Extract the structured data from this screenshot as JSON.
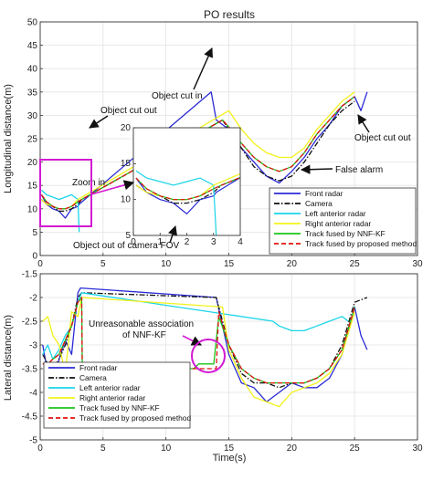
{
  "chart_data": [
    {
      "type": "line",
      "title": "PO results",
      "xlabel": "",
      "ylabel": "Longitudinal distance(m)",
      "xlim": [
        0,
        30
      ],
      "ylim": [
        0,
        50
      ],
      "xticks": [
        0,
        5,
        10,
        15,
        20,
        25,
        30
      ],
      "yticks": [
        0,
        5,
        10,
        15,
        20,
        25,
        30,
        35,
        40,
        45,
        50
      ],
      "grid": true,
      "legend_position": "bottom-right",
      "series": [
        {
          "name": "Front radar",
          "color": "#2b2bd6",
          "x": [
            0.1,
            0.5,
            1.0,
            1.5,
            2.0,
            2.5,
            3.0,
            3.1,
            13.6,
            14.0,
            14.5,
            15.0,
            16.0,
            17.0,
            18.0,
            19.0,
            20.0,
            21.0,
            22.0,
            23.0,
            24.0,
            25.0,
            25.5,
            26.0
          ],
          "y": [
            13,
            11,
            10,
            9.5,
            8,
            10,
            10.5,
            11,
            35,
            29,
            28,
            27,
            23,
            20,
            17,
            15.5,
            18,
            21,
            25,
            28,
            32,
            34,
            31,
            35
          ]
        },
        {
          "name": "Camera",
          "color": "#111111",
          "x": [
            0.1,
            0.5,
            1.0,
            1.5,
            2.0,
            2.5,
            3.0,
            3.3,
            14.5,
            15.0,
            16.0,
            17.0,
            18.0,
            19.0,
            20.0,
            21.0,
            22.0,
            23.0,
            24.0,
            25.0
          ],
          "y": [
            12,
            11,
            10.5,
            9.5,
            9.5,
            10,
            11,
            12,
            29,
            27,
            23,
            19,
            17,
            16,
            17,
            20,
            24,
            28,
            31,
            33
          ]
        },
        {
          "name": "Left anterior radar",
          "color": "#19d4e8",
          "x": [
            0.1,
            0.5,
            1.0,
            1.5,
            2.0,
            2.5,
            3.0,
            3.1
          ],
          "y": [
            14,
            13,
            12.5,
            12,
            12.5,
            13,
            12,
            5
          ]
        },
        {
          "name": "Right anterior radar",
          "color": "#f2f21a",
          "x": [
            0.1,
            0.5,
            1.0,
            1.5,
            2.0,
            2.5,
            3.0,
            15.0,
            16.0,
            17.0,
            18.0,
            19.0,
            20.0,
            21.0,
            22.0,
            23.0,
            24.0,
            25.0
          ],
          "y": [
            12,
            11,
            10.5,
            10,
            10,
            10.5,
            12,
            31,
            27,
            24,
            22,
            21,
            21,
            23,
            27,
            30,
            33,
            35
          ]
        },
        {
          "name": "Track fused by NNF-KF",
          "color": "#19c419",
          "x": [
            0.1,
            0.5,
            1.0,
            1.5,
            2.0,
            2.5,
            3.0,
            3.3,
            14.5,
            15.0,
            16.0,
            17.0,
            18.0,
            19.0,
            20.0,
            21.0,
            22.0,
            23.0,
            24.0,
            25.0
          ],
          "y": [
            13,
            11.5,
            10.5,
            10,
            10,
            10.5,
            11.5,
            12,
            29,
            27.5,
            24,
            21,
            19,
            18,
            19,
            22,
            26,
            29,
            32,
            34
          ]
        },
        {
          "name": "Track fused by proposed method",
          "color": "#e01010",
          "x": [
            0.1,
            0.5,
            1.0,
            1.5,
            2.0,
            2.5,
            3.0,
            3.3,
            14.5,
            15.0,
            16.0,
            17.0,
            18.0,
            19.0,
            20.0,
            21.0,
            22.0,
            23.0,
            24.0,
            25.0
          ],
          "y": [
            13,
            11.5,
            10.5,
            10,
            10,
            10.5,
            11.5,
            12,
            29,
            27.5,
            24,
            21,
            19,
            18,
            19,
            22,
            26,
            29,
            32,
            34
          ]
        }
      ],
      "inset": {
        "xlim": [
          0,
          4
        ],
        "ylim": [
          5,
          20
        ],
        "xticks": [
          0,
          1,
          2,
          3,
          4
        ],
        "yticks": [
          5,
          10,
          15,
          20
        ]
      },
      "annotations": [
        "PO results",
        "Object cut in",
        "Object cut out",
        "Object cut out",
        "Zoom in",
        "Object out of camera FOV",
        "False alarm"
      ]
    },
    {
      "type": "line",
      "title": "",
      "xlabel": "Time(s)",
      "ylabel": "Lateral distance(m)",
      "xlim": [
        0,
        30
      ],
      "ylim": [
        -5,
        -1.5
      ],
      "xticks": [
        0,
        5,
        10,
        15,
        20,
        25,
        30
      ],
      "yticks": [
        -5,
        -4.5,
        -4,
        -3.5,
        -3,
        -2.5,
        -2,
        -1.5
      ],
      "grid": true,
      "legend_position": "bottom-left",
      "series": [
        {
          "name": "Front radar",
          "color": "#2b2bd6",
          "x": [
            0.2,
            0.6,
            1.0,
            1.5,
            2.0,
            2.5,
            3.0,
            3.2,
            14.0,
            15.0,
            16.0,
            17.0,
            18.0,
            19.0,
            20.0,
            21.0,
            22.0,
            23.0,
            24.0,
            25.0,
            25.5,
            26.0
          ],
          "y": [
            -3.0,
            -3.6,
            -3.9,
            -3.3,
            -2.9,
            -3.2,
            -1.9,
            -1.8,
            -2.0,
            -3.2,
            -3.8,
            -3.9,
            -4.2,
            -4.0,
            -3.8,
            -3.9,
            -3.9,
            -3.7,
            -3.2,
            -2.2,
            -2.8,
            -3.1
          ]
        },
        {
          "name": "Camera",
          "color": "#111111",
          "x": [
            0.2,
            0.6,
            1.0,
            1.5,
            2.0,
            2.5,
            3.0,
            3.3,
            14.0,
            15.0,
            16.0,
            17.0,
            18.0,
            19.0,
            20.0,
            21.0,
            22.0,
            23.0,
            24.0,
            25.0,
            26.0
          ],
          "y": [
            -3.2,
            -3.4,
            -3.5,
            -3.3,
            -3.0,
            -2.6,
            -2.0,
            -1.9,
            -2.0,
            -3.0,
            -3.6,
            -3.8,
            -3.8,
            -3.9,
            -3.8,
            -3.8,
            -3.7,
            -3.5,
            -3.0,
            -2.1,
            -2.0
          ]
        },
        {
          "name": "Left anterior radar",
          "color": "#19d4e8",
          "x": [
            0.2,
            0.6,
            1.0,
            1.5,
            2.0,
            2.5,
            3.0,
            3.3,
            18.5,
            19.0,
            20.0,
            21.0,
            22.0,
            23.0,
            24.0,
            24.5
          ],
          "y": [
            -3.2,
            -3.0,
            -3.3,
            -3.1,
            -2.8,
            -2.6,
            -2.1,
            -1.9,
            -2.5,
            -2.6,
            -2.7,
            -2.7,
            -2.6,
            -2.5,
            -2.4,
            -2.5
          ]
        },
        {
          "name": "Right anterior radar",
          "color": "#f2f21a",
          "x": [
            0.2,
            0.6,
            1.0,
            1.5,
            2.0,
            2.5,
            3.0,
            3.3,
            14.5,
            15.0,
            16.0,
            17.0,
            18.0,
            19.0,
            20.0,
            21.0,
            22.0,
            23.0,
            24.0,
            25.0
          ],
          "y": [
            -2.5,
            -2.4,
            -2.8,
            -3.0,
            -3.6,
            -2.3,
            -2.4,
            -2.0,
            -2.2,
            -3.1,
            -3.7,
            -4.1,
            -4.2,
            -4.3,
            -4.0,
            -3.9,
            -3.8,
            -3.6,
            -3.2,
            -2.3
          ]
        },
        {
          "name": "Track fused by NNF-KF",
          "color": "#19c419",
          "x": [
            0.2,
            0.6,
            1.0,
            1.5,
            2.0,
            2.5,
            3.0,
            3.3,
            3.35,
            12.2,
            12.6,
            13.0,
            13.4,
            13.8,
            14.2,
            15.0,
            16.0,
            17.0,
            18.0,
            19.0,
            20.0,
            21.0,
            22.0,
            23.0,
            24.0,
            25.0
          ],
          "y": [
            -3.4,
            -3.4,
            -3.3,
            -3.2,
            -2.9,
            -2.6,
            -2.1,
            -2.0,
            -3.5,
            -3.5,
            -3.4,
            -3.4,
            -3.4,
            -3.4,
            -2.4,
            -3.0,
            -3.5,
            -3.7,
            -3.8,
            -3.8,
            -3.8,
            -3.8,
            -3.7,
            -3.5,
            -3.1,
            -2.2
          ]
        },
        {
          "name": "Track fused by proposed method",
          "color": "#e01010",
          "x": [
            0.2,
            0.6,
            1.0,
            1.5,
            2.0,
            2.5,
            3.0,
            3.3,
            3.35,
            14.0,
            14.2,
            15.0,
            16.0,
            17.0,
            18.0,
            19.0,
            20.0,
            21.0,
            22.0,
            23.0,
            24.0,
            25.0
          ],
          "y": [
            -3.4,
            -3.4,
            -3.3,
            -3.2,
            -2.9,
            -2.6,
            -2.1,
            -2.0,
            -3.5,
            -3.5,
            -2.3,
            -3.0,
            -3.5,
            -3.7,
            -3.8,
            -3.8,
            -3.8,
            -3.8,
            -3.7,
            -3.5,
            -3.1,
            -2.2
          ]
        }
      ],
      "annotations": [
        "Unreasonable association",
        "of NNF-KF"
      ]
    }
  ]
}
